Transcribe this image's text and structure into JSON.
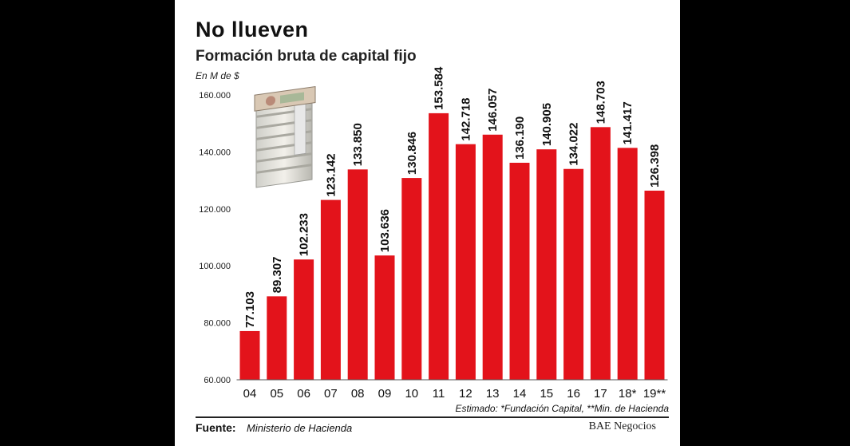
{
  "header": {
    "title": "No llueven",
    "subtitle": "Formación bruta de capital fijo",
    "unit": "En M de $"
  },
  "footer": {
    "estimado": "Estimado: *Fundación Capital, **Min. de Hacienda",
    "fuente_label": "Fuente:",
    "fuente_value": "Ministerio de Hacienda",
    "credit": "BAE Negocios"
  },
  "colors": {
    "bar": "#e3131b",
    "background": "#ffffff",
    "page": "#000000"
  },
  "decoration": {
    "icon": "money-stack-icon"
  },
  "chart_data": {
    "type": "bar",
    "categories": [
      "04",
      "05",
      "06",
      "07",
      "08",
      "09",
      "10",
      "11",
      "12",
      "13",
      "14",
      "15",
      "16",
      "17",
      "18*",
      "19**"
    ],
    "values": [
      77103,
      89307,
      102233,
      123142,
      133850,
      103636,
      130846,
      153584,
      142718,
      146057,
      136190,
      140905,
      134022,
      148703,
      141417,
      126398
    ],
    "value_labels": [
      "77.103",
      "89.307",
      "102.233",
      "123.142",
      "133.850",
      "103.636",
      "130.846",
      "153.584",
      "142.718",
      "146.057",
      "136.190",
      "140.905",
      "134.022",
      "148.703",
      "141.417",
      "126.398"
    ],
    "ylim": [
      60000,
      160000
    ],
    "yticks": [
      60000,
      80000,
      100000,
      120000,
      140000,
      160000
    ],
    "ytick_labels": [
      "60.000",
      "80.000",
      "100.000",
      "120.000",
      "140.000",
      "160.000"
    ],
    "grid": false,
    "legend": "none"
  }
}
